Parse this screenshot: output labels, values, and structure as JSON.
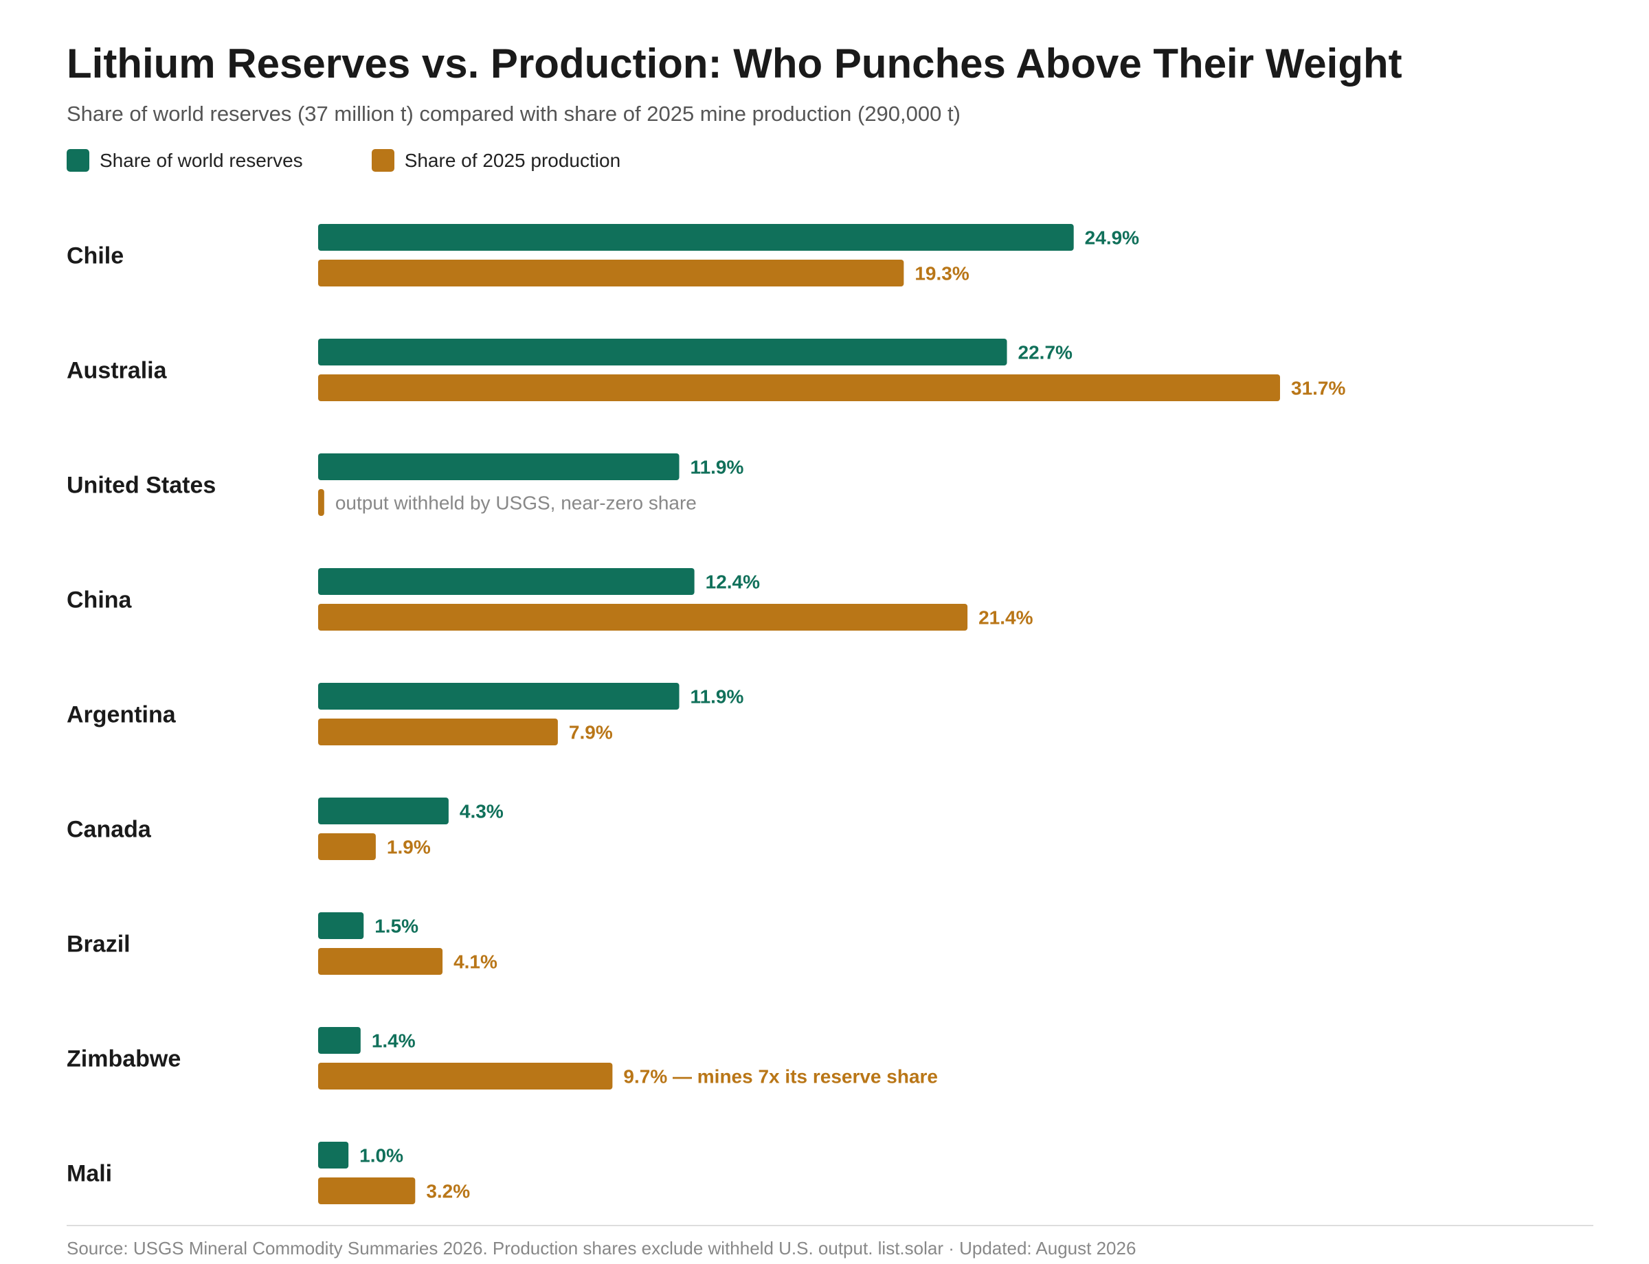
{
  "title": "Lithium Reserves vs. Production: Who Punches Above Their Weight",
  "subtitle": "Share of world reserves (37 million t) compared with share of 2025 mine production (290,000 t)",
  "legend": {
    "reserves": "Share of world reserves",
    "production": "Share of 2025 production"
  },
  "colors": {
    "reserves": "#10705a",
    "production": "#b97617",
    "note": "#888888"
  },
  "footer": "Source: USGS Mineral Commodity Summaries 2026. Production shares exclude withheld U.S. output. list.solar · Updated: August 2026",
  "chart_data": {
    "type": "bar",
    "orientation": "horizontal",
    "categories": [
      "Chile",
      "Australia",
      "United States",
      "China",
      "Argentina",
      "Canada",
      "Brazil",
      "Zimbabwe",
      "Mali"
    ],
    "series": [
      {
        "name": "Share of world reserves",
        "values": [
          24.9,
          22.7,
          11.9,
          12.4,
          11.9,
          4.3,
          1.5,
          1.4,
          1.0
        ],
        "labels": [
          "24.9%",
          "22.7%",
          "11.9%",
          "12.4%",
          "11.9%",
          "4.3%",
          "1.5%",
          "1.4%",
          "1.0%"
        ]
      },
      {
        "name": "Share of 2025 production",
        "values": [
          19.3,
          31.7,
          0.2,
          21.4,
          7.9,
          1.9,
          4.1,
          9.7,
          3.2
        ],
        "labels": [
          "19.3%",
          "31.7%",
          "output withheld by USGS, near-zero share",
          "21.4%",
          "7.9%",
          "1.9%",
          "4.1%",
          "9.7% — mines 7x its reserve share",
          "3.2%"
        ]
      }
    ],
    "xlim": [
      0,
      31.7
    ],
    "grid": false,
    "legend_position": "top-left"
  }
}
